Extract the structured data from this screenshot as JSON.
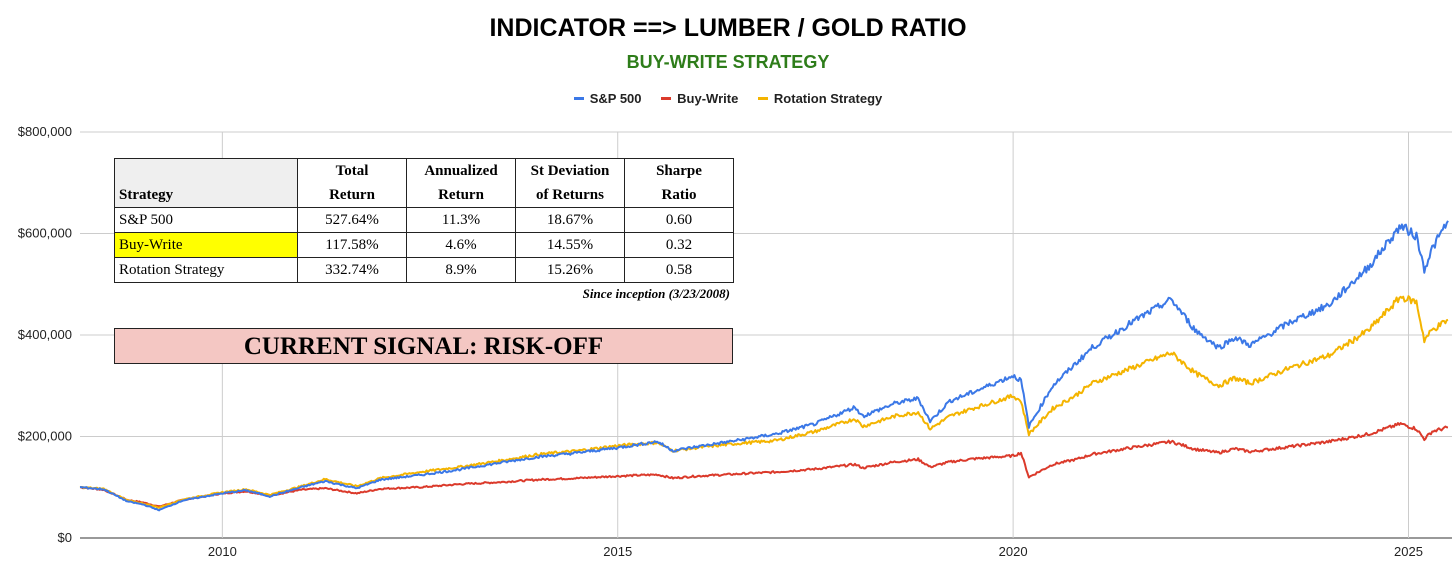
{
  "chart_data": {
    "type": "line",
    "title": "INDICATOR ==> LUMBER / GOLD RATIO",
    "subtitle": "BUY-WRITE STRATEGY",
    "legend_position": "top-center",
    "grid": true,
    "x_range": [
      2008.2,
      2025.55
    ],
    "ylim": [
      0,
      800000
    ],
    "y_ticks": [
      0,
      200000,
      400000,
      600000,
      800000
    ],
    "y_tick_labels": [
      "$0",
      "$200,000",
      "$400,000",
      "$600,000",
      "$800,000"
    ],
    "x_ticks": [
      2010,
      2015,
      2020,
      2025
    ],
    "x_tick_labels": [
      "2010",
      "2015",
      "2020",
      "2025"
    ],
    "x": [
      2008.2,
      2008.5,
      2008.8,
      2009.0,
      2009.2,
      2009.5,
      2010.0,
      2010.3,
      2010.6,
      2011.0,
      2011.3,
      2011.7,
      2012.0,
      2012.5,
      2013.0,
      2013.5,
      2014.0,
      2014.5,
      2015.0,
      2015.5,
      2015.7,
      2016.0,
      2016.5,
      2017.0,
      2017.5,
      2018.0,
      2018.1,
      2018.5,
      2018.8,
      2018.95,
      2019.2,
      2019.5,
      2020.0,
      2020.1,
      2020.2,
      2020.5,
      2020.8,
      2021.0,
      2021.5,
      2022.0,
      2022.3,
      2022.6,
      2022.8,
      2023.0,
      2023.5,
      2024.0,
      2024.5,
      2024.9,
      2025.1,
      2025.2,
      2025.3,
      2025.5
    ],
    "series": [
      {
        "name": "S&P 500",
        "color": "#3b78e7",
        "values": [
          100000,
          96000,
          72000,
          66000,
          55000,
          74000,
          88000,
          94000,
          82000,
          100000,
          112000,
          98000,
          115000,
          124000,
          135000,
          148000,
          160000,
          168000,
          178000,
          190000,
          172000,
          180000,
          192000,
          205000,
          225000,
          258000,
          240000,
          265000,
          275000,
          230000,
          270000,
          288000,
          320000,
          310000,
          220000,
          300000,
          345000,
          375000,
          425000,
          470000,
          410000,
          375000,
          395000,
          380000,
          425000,
          460000,
          535000,
          615000,
          595000,
          530000,
          570000,
          625000
        ]
      },
      {
        "name": "Buy-Write",
        "color": "#db3a2b",
        "values": [
          100000,
          95000,
          75000,
          70000,
          62000,
          75000,
          88000,
          92000,
          84000,
          95000,
          98000,
          88000,
          97000,
          100000,
          106000,
          110000,
          115000,
          118000,
          122000,
          125000,
          118000,
          122000,
          126000,
          130000,
          136000,
          145000,
          138000,
          150000,
          155000,
          140000,
          150000,
          156000,
          162000,
          168000,
          120000,
          145000,
          155000,
          165000,
          178000,
          190000,
          175000,
          168000,
          176000,
          170000,
          180000,
          190000,
          205000,
          225000,
          215000,
          195000,
          210000,
          218000
        ]
      },
      {
        "name": "Rotation Strategy",
        "color": "#f4b400",
        "values": [
          100000,
          97000,
          74000,
          68000,
          60000,
          76000,
          90000,
          96000,
          85000,
          102000,
          116000,
          102000,
          118000,
          130000,
          140000,
          152000,
          165000,
          172000,
          182000,
          188000,
          172000,
          178000,
          186000,
          192000,
          210000,
          235000,
          220000,
          240000,
          248000,
          215000,
          240000,
          256000,
          280000,
          270000,
          205000,
          255000,
          282000,
          305000,
          335000,
          365000,
          325000,
          300000,
          315000,
          305000,
          335000,
          360000,
          410000,
          475000,
          465000,
          390000,
          410000,
          430000
        ]
      }
    ]
  },
  "stats_table": {
    "headers": [
      {
        "line1": "",
        "line2": "Strategy"
      },
      {
        "line1": "Total",
        "line2": "Return"
      },
      {
        "line1": "Annualized",
        "line2": "Return"
      },
      {
        "line1": "St Deviation",
        "line2": "of Returns"
      },
      {
        "line1": "Sharpe",
        "line2": "Ratio"
      }
    ],
    "rows": [
      {
        "strategy": "S&P 500",
        "total_return": "527.64%",
        "annualized_return": "11.3%",
        "st_deviation": "18.67%",
        "sharpe": "0.60",
        "highlight": false
      },
      {
        "strategy": "Buy-Write",
        "total_return": "117.58%",
        "annualized_return": "4.6%",
        "st_deviation": "14.55%",
        "sharpe": "0.32",
        "highlight": true
      },
      {
        "strategy": "Rotation Strategy",
        "total_return": "332.74%",
        "annualized_return": "8.9%",
        "st_deviation": "15.26%",
        "sharpe": "0.58",
        "highlight": false
      }
    ],
    "footnote": "Since inception (3/23/2008)",
    "highlight_color": "#ffff00"
  },
  "signal": {
    "text": "CURRENT SIGNAL: RISK-OFF",
    "background": "#f4c7c3"
  }
}
